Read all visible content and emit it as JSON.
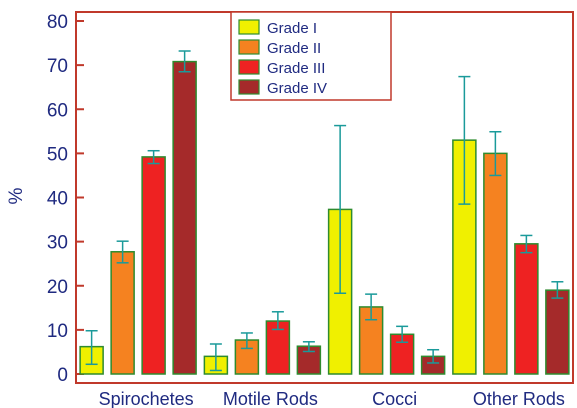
{
  "chart_data": {
    "type": "bar",
    "title": "",
    "xlabel": "",
    "ylabel": "%",
    "ylim": [
      0,
      80
    ],
    "yticks": [
      0,
      10,
      20,
      30,
      40,
      50,
      60,
      70,
      80
    ],
    "categories": [
      "Spirochetes",
      "Motile Rods",
      "Cocci",
      "Other Rods"
    ],
    "series": [
      {
        "name": "Grade I",
        "color": "#f0f000",
        "values": [
          6.2,
          4.0,
          37.3,
          53.0
        ],
        "err_low": [
          2.2,
          0.8,
          18.3,
          38.5
        ],
        "err_high": [
          9.8,
          6.8,
          56.3,
          67.4
        ]
      },
      {
        "name": "Grade II",
        "color": "#f58220",
        "values": [
          27.7,
          7.7,
          15.2,
          50.0
        ],
        "err_low": [
          25.2,
          5.8,
          12.3,
          45.0
        ],
        "err_high": [
          30.1,
          9.3,
          18.1,
          54.9
        ]
      },
      {
        "name": "Grade III",
        "color": "#ee2222",
        "values": [
          49.2,
          12.0,
          9.0,
          29.5
        ],
        "err_low": [
          47.7,
          10.1,
          7.2,
          27.5
        ],
        "err_high": [
          50.6,
          14.1,
          10.8,
          31.4
        ]
      },
      {
        "name": "Grade IV",
        "color": "#a52a2a",
        "values": [
          70.8,
          6.3,
          4.0,
          19.0
        ],
        "err_low": [
          68.5,
          5.1,
          2.5,
          17.2
        ],
        "err_high": [
          73.2,
          7.3,
          5.5,
          20.9
        ]
      }
    ],
    "bar_edge_color": "#2e8b2e",
    "error_bar_color": "#1a9a9a",
    "axis_color": "#c0392b",
    "grid": false,
    "legend_position": "top-center"
  }
}
